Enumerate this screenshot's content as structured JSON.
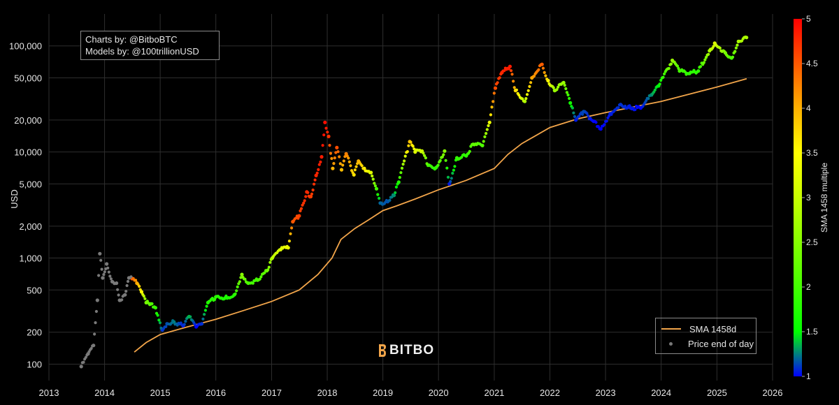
{
  "credits": {
    "line1": "Charts by: @BitboBTC",
    "line2": "Models by: @100trillionUSD"
  },
  "logo": {
    "text": "BITBO"
  },
  "legend": {
    "sma_label": "SMA 1458d",
    "price_label": "Price end of day"
  },
  "colors": {
    "background": "#000000",
    "sma_line": "#f2a54a",
    "pre_sma_price": "#7a7a7a",
    "colorscale": [
      "#0000ff",
      "#00ff00",
      "#ffff00",
      "#ff0000"
    ]
  },
  "chart_data": {
    "type": "scatter",
    "y_scale": "log",
    "ylabel": "USD",
    "xlim": [
      "2013-01-01",
      "2026-01-01"
    ],
    "ylim": [
      70,
      200000
    ],
    "x_ticks": [
      "2013",
      "2014",
      "2015",
      "2016",
      "2017",
      "2018",
      "2019",
      "2020",
      "2021",
      "2022",
      "2023",
      "2024",
      "2025",
      "2026"
    ],
    "y_ticks": [
      {
        "value": 100,
        "label": "100"
      },
      {
        "value": 200,
        "label": "200"
      },
      {
        "value": 500,
        "label": "500"
      },
      {
        "value": 1000,
        "label": "1,000"
      },
      {
        "value": 2000,
        "label": "2,000"
      },
      {
        "value": 5000,
        "label": "5,000"
      },
      {
        "value": 10000,
        "label": "10,000"
      },
      {
        "value": 20000,
        "label": "20,000"
      },
      {
        "value": 50000,
        "label": "50,000"
      },
      {
        "value": 100000,
        "label": "100,000"
      }
    ],
    "colorbar": {
      "title": "SMA 1458 multiple",
      "min": 1,
      "max": 5,
      "ticks": [
        "1",
        "1.5",
        "2",
        "2.5",
        "3",
        "3.5",
        "4",
        "4.5",
        "5"
      ]
    },
    "series": [
      {
        "name": "SMA 1458d",
        "type": "line",
        "points": [
          [
            "2014-07-15",
            130
          ],
          [
            "2014-10-01",
            160
          ],
          [
            "2015-01-01",
            190
          ],
          [
            "2015-07-01",
            225
          ],
          [
            "2016-01-01",
            265
          ],
          [
            "2016-07-01",
            320
          ],
          [
            "2017-01-01",
            390
          ],
          [
            "2017-07-01",
            500
          ],
          [
            "2017-11-01",
            700
          ],
          [
            "2018-02-01",
            1000
          ],
          [
            "2018-04-01",
            1500
          ],
          [
            "2018-07-01",
            1900
          ],
          [
            "2018-10-01",
            2300
          ],
          [
            "2019-01-01",
            2800
          ],
          [
            "2019-04-01",
            3100
          ],
          [
            "2019-08-01",
            3600
          ],
          [
            "2020-01-01",
            4400
          ],
          [
            "2020-07-01",
            5400
          ],
          [
            "2021-01-01",
            7000
          ],
          [
            "2021-04-01",
            9500
          ],
          [
            "2021-07-01",
            12000
          ],
          [
            "2022-01-01",
            17000
          ],
          [
            "2022-07-01",
            20500
          ],
          [
            "2023-01-01",
            23500
          ],
          [
            "2023-07-01",
            26500
          ],
          [
            "2024-01-01",
            30000
          ],
          [
            "2024-07-01",
            35000
          ],
          [
            "2025-01-01",
            41000
          ],
          [
            "2025-07-15",
            49000
          ]
        ]
      },
      {
        "name": "Price end of day",
        "type": "scatter",
        "points": [
          [
            "2013-08-01",
            95,
            null
          ],
          [
            "2013-09-15",
            125,
            null
          ],
          [
            "2013-10-20",
            150,
            null
          ],
          [
            "2013-11-15",
            400,
            null
          ],
          [
            "2013-12-01",
            1100,
            null
          ],
          [
            "2013-12-20",
            650,
            null
          ],
          [
            "2014-01-15",
            880,
            null
          ],
          [
            "2014-02-20",
            600,
            null
          ],
          [
            "2014-03-20",
            580,
            null
          ],
          [
            "2014-04-10",
            400,
            null
          ],
          [
            "2014-05-15",
            450,
            null
          ],
          [
            "2014-06-10",
            650,
            null
          ],
          [
            "2014-07-01",
            640,
            4.3
          ],
          [
            "2014-08-01",
            580,
            3.7
          ],
          [
            "2014-09-01",
            480,
            3.0
          ],
          [
            "2014-10-01",
            380,
            2.2
          ],
          [
            "2014-11-01",
            370,
            2.0
          ],
          [
            "2014-12-01",
            340,
            1.8
          ],
          [
            "2015-01-15",
            210,
            1.1
          ],
          [
            "2015-02-15",
            240,
            1.15
          ],
          [
            "2015-04-01",
            250,
            1.25
          ],
          [
            "2015-06-01",
            230,
            1.05
          ],
          [
            "2015-07-10",
            280,
            1.4
          ],
          [
            "2015-08-25",
            225,
            1.0
          ],
          [
            "2015-10-01",
            240,
            1.1
          ],
          [
            "2015-11-10",
            380,
            1.7
          ],
          [
            "2016-01-01",
            430,
            1.75
          ],
          [
            "2016-03-01",
            420,
            1.65
          ],
          [
            "2016-05-01",
            450,
            1.7
          ],
          [
            "2016-06-20",
            700,
            2.3
          ],
          [
            "2016-08-01",
            580,
            1.9
          ],
          [
            "2016-10-01",
            620,
            1.9
          ],
          [
            "2016-12-01",
            760,
            2.1
          ],
          [
            "2017-01-05",
            1000,
            2.6
          ],
          [
            "2017-03-01",
            1200,
            2.8
          ],
          [
            "2017-04-20",
            1250,
            2.9
          ],
          [
            "2017-05-20",
            2200,
            4.3
          ],
          [
            "2017-07-01",
            2500,
            4.5
          ],
          [
            "2017-08-20",
            4200,
            4.7
          ],
          [
            "2017-09-15",
            3800,
            4.5
          ],
          [
            "2017-10-20",
            6000,
            4.7
          ],
          [
            "2017-11-25",
            9000,
            4.8
          ],
          [
            "2017-12-17",
            19000,
            4.9
          ],
          [
            "2018-01-10",
            14000,
            4.6
          ],
          [
            "2018-02-06",
            7000,
            3.6
          ],
          [
            "2018-03-05",
            11000,
            4.4
          ],
          [
            "2018-04-05",
            6800,
            3.5
          ],
          [
            "2018-05-05",
            9600,
            4.0
          ],
          [
            "2018-06-25",
            6100,
            3.2
          ],
          [
            "2018-07-25",
            8200,
            3.6
          ],
          [
            "2018-09-01",
            7000,
            3.1
          ],
          [
            "2018-10-15",
            6400,
            2.8
          ],
          [
            "2018-11-20",
            4500,
            1.9
          ],
          [
            "2018-12-15",
            3300,
            1.2
          ],
          [
            "2019-02-01",
            3400,
            1.15
          ],
          [
            "2019-03-15",
            3900,
            1.3
          ],
          [
            "2019-04-15",
            5200,
            1.7
          ],
          [
            "2019-06-26",
            12500,
            3.5
          ],
          [
            "2019-08-01",
            10000,
            2.8
          ],
          [
            "2019-09-15",
            10200,
            2.7
          ],
          [
            "2019-10-25",
            7500,
            1.9
          ],
          [
            "2019-12-15",
            7100,
            1.75
          ],
          [
            "2020-02-10",
            10200,
            2.3
          ],
          [
            "2020-03-12",
            5000,
            1.05
          ],
          [
            "2020-05-01",
            8800,
            1.8
          ],
          [
            "2020-07-01",
            9200,
            1.75
          ],
          [
            "2020-08-15",
            11800,
            2.1
          ],
          [
            "2020-10-15",
            11500,
            1.95
          ],
          [
            "2020-12-01",
            19000,
            2.9
          ],
          [
            "2021-01-08",
            40000,
            4.4
          ],
          [
            "2021-02-20",
            56000,
            4.7
          ],
          [
            "2021-04-14",
            64000,
            4.8
          ],
          [
            "2021-05-20",
            38000,
            3.3
          ],
          [
            "2021-07-20",
            30000,
            2.5
          ],
          [
            "2021-09-05",
            50000,
            3.7
          ],
          [
            "2021-11-10",
            67000,
            4.3
          ],
          [
            "2021-12-20",
            47000,
            3.0
          ],
          [
            "2022-02-01",
            38000,
            2.4
          ],
          [
            "2022-04-01",
            45000,
            2.4
          ],
          [
            "2022-05-15",
            29000,
            1.6
          ],
          [
            "2022-06-20",
            20000,
            1.05
          ],
          [
            "2022-08-10",
            24000,
            1.15
          ],
          [
            "2022-10-15",
            19500,
            1.0
          ],
          [
            "2022-12-01",
            16500,
            1.0
          ],
          [
            "2023-02-01",
            23000,
            1.05
          ],
          [
            "2023-04-10",
            28000,
            1.1
          ],
          [
            "2023-06-15",
            26000,
            1.05
          ],
          [
            "2023-08-20",
            26000,
            1.0
          ],
          [
            "2023-10-30",
            34500,
            1.3
          ],
          [
            "2023-12-15",
            42000,
            1.5
          ],
          [
            "2024-03-14",
            73000,
            2.4
          ],
          [
            "2024-05-01",
            58000,
            1.9
          ],
          [
            "2024-07-05",
            55000,
            1.75
          ],
          [
            "2024-09-01",
            58000,
            1.75
          ],
          [
            "2024-11-13",
            90000,
            2.5
          ],
          [
            "2024-12-17",
            106000,
            2.8
          ],
          [
            "2025-02-25",
            86000,
            2.2
          ],
          [
            "2025-04-07",
            77000,
            1.9
          ],
          [
            "2025-05-22",
            110000,
            2.5
          ],
          [
            "2025-07-14",
            120000,
            2.5
          ]
        ]
      }
    ]
  }
}
